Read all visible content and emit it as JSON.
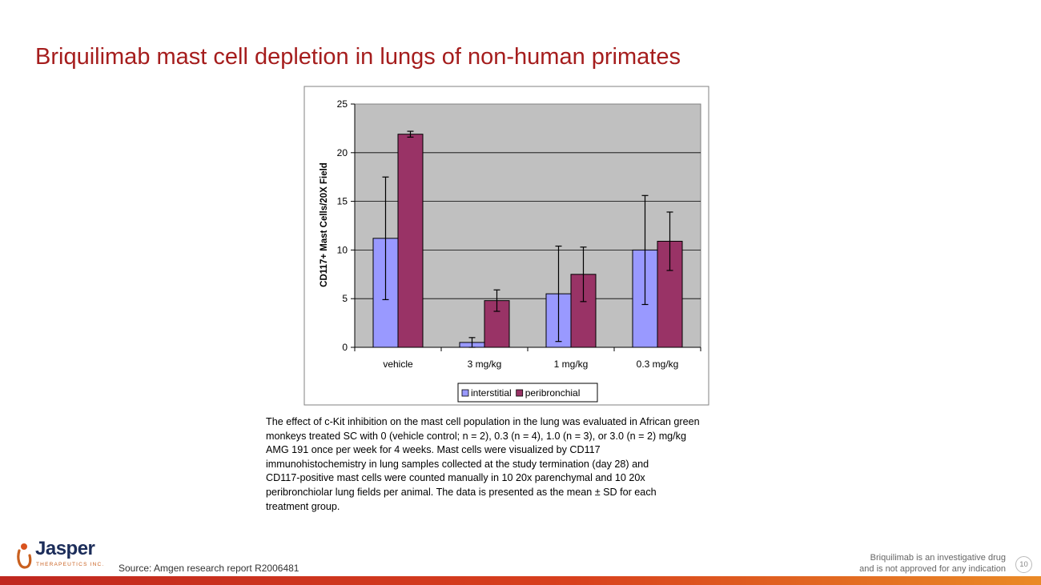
{
  "slide": {
    "title": "Briquilimab mast cell depletion in lungs of non-human primates",
    "caption_lines": [
      "The effect of c-Kit inhibition on the mast cell population in the lung was evaluated in African green",
      "monkeys treated SC with 0 (vehicle control; n = 2), 0.3 (n = 4), 1.0 (n = 3), or 3.0 (n = 2) mg/kg",
      "AMG 191 once per week for 4 weeks.  Mast cells were visualized by CD117",
      "immunohistochemistry in lung samples collected at the study termination (day 28) and",
      "CD117-positive mast cells were counted manually in 10 20x parenchymal and 10 20x",
      "peribronchiolar lung fields per animal.  The data is presented as the mean ± SD for each",
      "treatment group."
    ],
    "source": "Source: Amgen research report R2006481",
    "disclaimer_line1": "Briquilimab  is an investigative drug",
    "disclaimer_line2": "and is not approved for any indication",
    "page_number": "10"
  },
  "logo": {
    "word": "Jasper",
    "sub": "THERAPEUTICS INC."
  },
  "chart_data": {
    "type": "bar",
    "title": "",
    "xlabel": "",
    "ylabel": "CD117+ Mast Cells/20X Field",
    "categories": [
      "vehicle",
      "3 mg/kg",
      "1 mg/kg",
      "0.3 mg/kg"
    ],
    "series": [
      {
        "name": "interstitial",
        "values": [
          11.2,
          0.5,
          5.5,
          10.0
        ],
        "errors": [
          6.3,
          0.5,
          4.9,
          5.6
        ],
        "color": "#9999ff"
      },
      {
        "name": "peribronchial",
        "values": [
          21.9,
          4.8,
          7.5,
          10.9
        ],
        "errors": [
          0.3,
          1.1,
          2.8,
          3.0
        ],
        "color": "#993366"
      }
    ],
    "ylim": [
      0,
      25
    ],
    "yticks": [
      0,
      5,
      10,
      15,
      20,
      25
    ],
    "ytick_labels": [
      "0",
      "5",
      "10",
      "15",
      "20",
      "25"
    ],
    "grid": true,
    "plot_background": "#c0c0c0",
    "legend_position": "bottom"
  }
}
